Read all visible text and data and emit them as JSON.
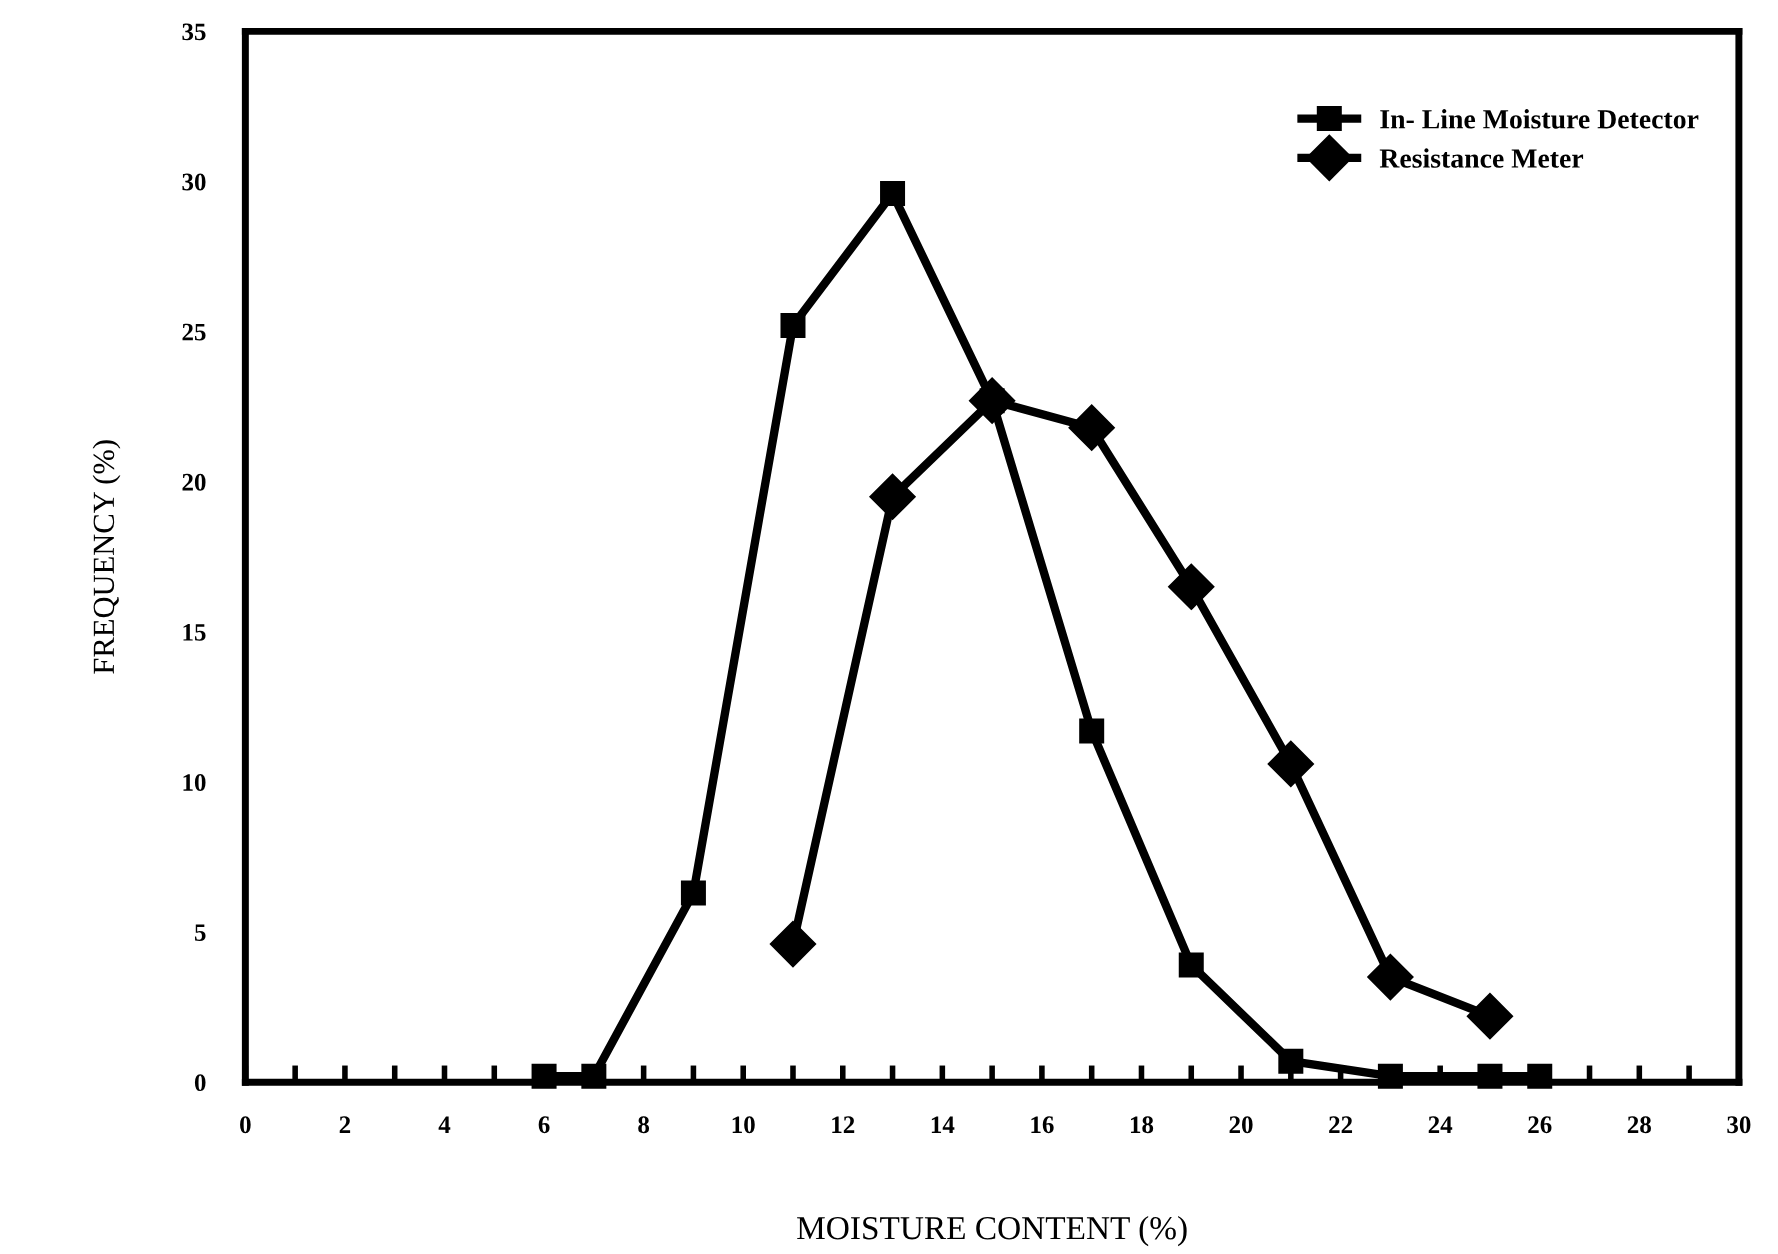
{
  "chart_data": {
    "type": "line",
    "xlabel": "MOISTURE CONTENT (%)",
    "ylabel": "FREQUENCY (%)",
    "xlim": [
      0,
      30
    ],
    "ylim": [
      0,
      35
    ],
    "xticks": [
      0,
      {
        "value": 1,
        "label": null
      },
      2,
      {
        "value": 3,
        "label": null
      },
      4,
      {
        "value": 5,
        "label": null
      },
      6,
      {
        "value": 7,
        "label": null
      },
      8,
      {
        "value": 9,
        "label": null
      },
      10,
      {
        "value": 11,
        "label": null
      },
      12,
      {
        "value": 13,
        "label": null
      },
      14,
      {
        "value": 15,
        "label": null
      },
      16,
      {
        "value": 17,
        "label": null
      },
      18,
      {
        "value": 19,
        "label": null
      },
      20,
      {
        "value": 21,
        "label": null
      },
      22,
      {
        "value": 23,
        "label": null
      },
      24,
      {
        "value": 25,
        "label": null
      },
      26,
      {
        "value": 27,
        "label": null
      },
      28,
      {
        "value": 29,
        "label": null
      },
      30
    ],
    "yticks": [
      0,
      5,
      10,
      15,
      20,
      25,
      30,
      35
    ],
    "grid": false,
    "legend": "top right",
    "series": [
      {
        "name": "In- Line Moisture Detector",
        "color": "#000000",
        "marker": "square",
        "x": [
          6,
          7,
          9,
          11,
          13,
          15,
          17,
          19,
          21,
          23,
          25,
          26
        ],
        "values": [
          0.2,
          0.2,
          6.3,
          25.2,
          29.6,
          22.7,
          11.7,
          3.9,
          0.7,
          0.2,
          0.2,
          0.2
        ]
      },
      {
        "name": "Resistance Meter",
        "color": "#000000",
        "marker": "diamond",
        "x": [
          11,
          13,
          15,
          17,
          19,
          21,
          23,
          25
        ],
        "values": [
          4.6,
          19.5,
          22.7,
          21.8,
          16.5,
          10.6,
          3.5,
          2.2
        ]
      }
    ]
  }
}
